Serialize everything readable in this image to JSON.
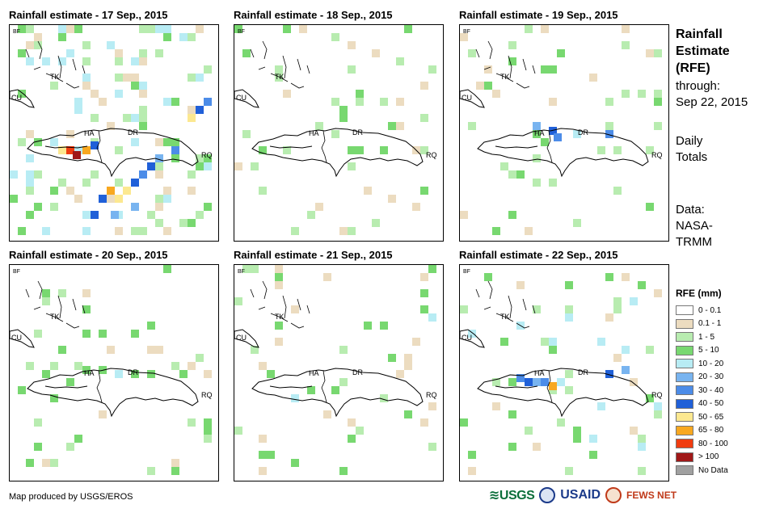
{
  "panels": [
    {
      "title": "Rainfall estimate - 17 Sep., 2015",
      "date": "17 Sep., 2015"
    },
    {
      "title": "Rainfall estimate - 18 Sep., 2015",
      "date": "18 Sep., 2015"
    },
    {
      "title": "Rainfall estimate - 19 Sep., 2015",
      "date": "19 Sep., 2015"
    },
    {
      "title": "Rainfall estimate - 20 Sep., 2015",
      "date": "20 Sep., 2015"
    },
    {
      "title": "Rainfall estimate - 21 Sep., 2015",
      "date": "21 Sep., 2015"
    },
    {
      "title": "Rainfall estimate - 22 Sep., 2015",
      "date": "22 Sep., 2015"
    }
  ],
  "map_labels": {
    "bf": "BF",
    "cu": "CU",
    "tk": "TK",
    "ha": "HA",
    "dr": "DR",
    "rq": "RQ"
  },
  "side_panel": {
    "title_line1": "Rainfall",
    "title_line2": "Estimate",
    "title_line3": "(RFE)",
    "through_label": "through:",
    "through_date": "Sep 22, 2015",
    "daily_line1": "Daily",
    "daily_line2": "Totals",
    "data_label": "Data:",
    "data_source_line1": "NASA-",
    "data_source_line2": "TRMM"
  },
  "legend": {
    "title": "RFE (mm)",
    "items": [
      {
        "label": "0 - 0.1",
        "color": "#ffffff"
      },
      {
        "label": "0.1 - 1",
        "color": "#ecdcc0"
      },
      {
        "label": "1 - 5",
        "color": "#b8ecb0"
      },
      {
        "label": "5 - 10",
        "color": "#78d870"
      },
      {
        "label": "10 - 20",
        "color": "#b8ecf4"
      },
      {
        "label": "20 - 30",
        "color": "#78b4f0"
      },
      {
        "label": "30 - 40",
        "color": "#4c8ce8"
      },
      {
        "label": "40 - 50",
        "color": "#2060d8"
      },
      {
        "label": "50 - 65",
        "color": "#fce890"
      },
      {
        "label": "65 - 80",
        "color": "#f8a820"
      },
      {
        "label": "80 - 100",
        "color": "#f03c10"
      },
      {
        "label": "> 100",
        "color": "#a01818"
      },
      {
        "label": "No Data",
        "color": "#a0a0a0"
      }
    ]
  },
  "footer": {
    "credit": "Map produced by USGS/EROS"
  },
  "logos": {
    "usgs": "USGS",
    "usaid": "USAID",
    "fews": "FEWS NET"
  }
}
